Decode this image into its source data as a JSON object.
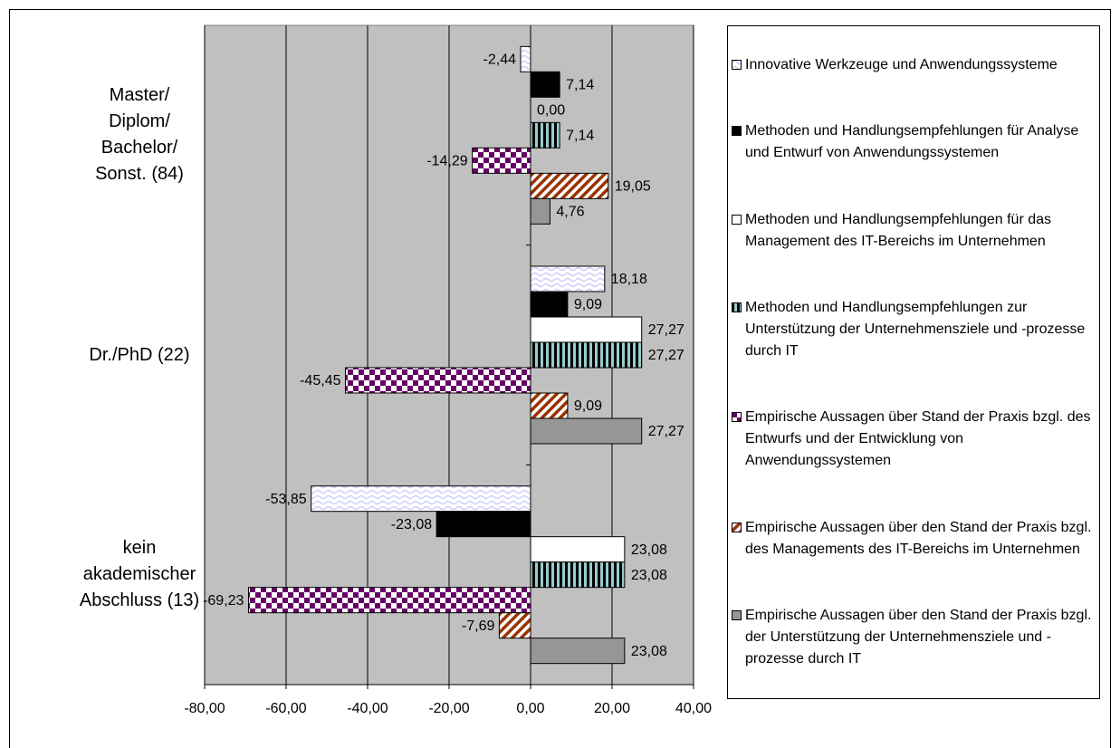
{
  "chart_data": {
    "type": "hbar",
    "categories": [
      "Master/\nDiplom/\nBachelor/\nSonst. (84)",
      "Dr./PhD (22)",
      "kein\nakademischer\nAbschluss (13)"
    ],
    "series": [
      {
        "name": "Innovative Werkzeuge und Anwendungssysteme",
        "color": "#ccccff",
        "pattern": "wave",
        "values": [
          -2.44,
          18.18,
          -53.85
        ],
        "value_labels": [
          "-2,44",
          "18,18",
          "-53,85"
        ]
      },
      {
        "name": "Methoden und Handlungsempfehlungen für Analyse und Entwurf von Anwendungssystemen",
        "color": "#000000",
        "pattern": "solid",
        "values": [
          7.14,
          9.09,
          -23.08
        ],
        "value_labels": [
          "7,14",
          "9,09",
          "-23,08"
        ]
      },
      {
        "name": "Methoden und Handlungsempfehlungen für das Management des IT-Bereichs im Unternehmen",
        "color": "#ffffff",
        "pattern": "solid",
        "values": [
          0.0,
          27.27,
          23.08
        ],
        "value_labels": [
          "0,00",
          "27,27",
          "23,08"
        ]
      },
      {
        "name": "Methoden und Handlungsempfehlungen zur Unterstützung der Unternehmensziele und -prozesse durch IT",
        "color": "#99cccc",
        "pattern": "vstripe",
        "values": [
          7.14,
          27.27,
          23.08
        ],
        "value_labels": [
          "7,14",
          "27,27",
          "23,08"
        ]
      },
      {
        "name": "Empirische Aussagen über Stand der Praxis bzgl. des Entwurfs und der Entwicklung von Anwendungssystemen",
        "color": "#660066",
        "pattern": "checker",
        "values": [
          -14.29,
          -45.45,
          -69.23
        ],
        "value_labels": [
          "-14,29",
          "-45,45",
          "-69,23"
        ]
      },
      {
        "name": "Empirische Aussagen über den Stand der Praxis bzgl. des Managements des IT-Bereichs im Unternehmen",
        "color": "#993300",
        "pattern": "diagonal",
        "values": [
          19.05,
          9.09,
          -7.69
        ],
        "value_labels": [
          "19,05",
          "9,09",
          "-7,69"
        ]
      },
      {
        "name": "Empirische Aussagen über den  Stand der Praxis bzgl. der Unterstützung der Unternehmensziele und -prozesse durch IT",
        "color": "#969696",
        "pattern": "solid",
        "values": [
          4.76,
          27.27,
          23.08
        ],
        "value_labels": [
          "4,76",
          "27,27",
          "23,08"
        ]
      }
    ],
    "xlim": [
      -80,
      40
    ],
    "xticks": [
      {
        "value": -80,
        "label": "-80,00"
      },
      {
        "value": -60,
        "label": "-60,00"
      },
      {
        "value": -40,
        "label": "-40,00"
      },
      {
        "value": -20,
        "label": "-20,00"
      },
      {
        "value": 0,
        "label": "0,00"
      },
      {
        "value": 20,
        "label": "20,00"
      },
      {
        "value": 40,
        "label": "40,00"
      }
    ],
    "grid": true,
    "legend": "right"
  }
}
